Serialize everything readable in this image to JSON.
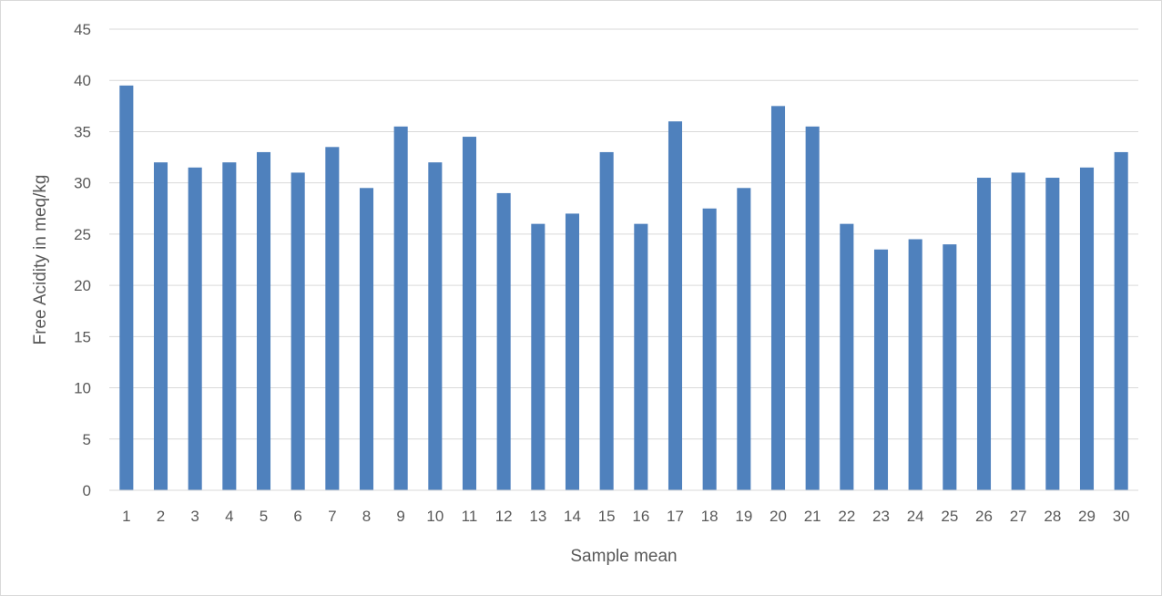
{
  "chart_data": {
    "type": "bar",
    "title": "",
    "xlabel": "Sample mean",
    "ylabel": "Free Acidity in meq/kg",
    "categories": [
      "1",
      "2",
      "3",
      "4",
      "5",
      "6",
      "7",
      "8",
      "9",
      "10",
      "11",
      "12",
      "13",
      "14",
      "15",
      "16",
      "17",
      "18",
      "19",
      "20",
      "21",
      "22",
      "23",
      "24",
      "25",
      "26",
      "27",
      "28",
      "29",
      "30"
    ],
    "values": [
      39.5,
      32,
      31.5,
      32,
      33,
      31,
      33.5,
      29.5,
      35.5,
      32,
      34.5,
      29,
      26,
      27,
      33,
      26,
      36,
      27.5,
      29.5,
      37.5,
      35.5,
      26,
      23.5,
      24.5,
      24,
      30.5,
      31,
      30.5,
      31.5,
      33
    ],
    "ylim": [
      0,
      45
    ],
    "yticks": [
      0,
      5,
      10,
      15,
      20,
      25,
      30,
      35,
      40,
      45
    ],
    "grid": true,
    "legend": "none",
    "bar_color": "#4f81bd",
    "grid_color": "#d9d9d9"
  }
}
